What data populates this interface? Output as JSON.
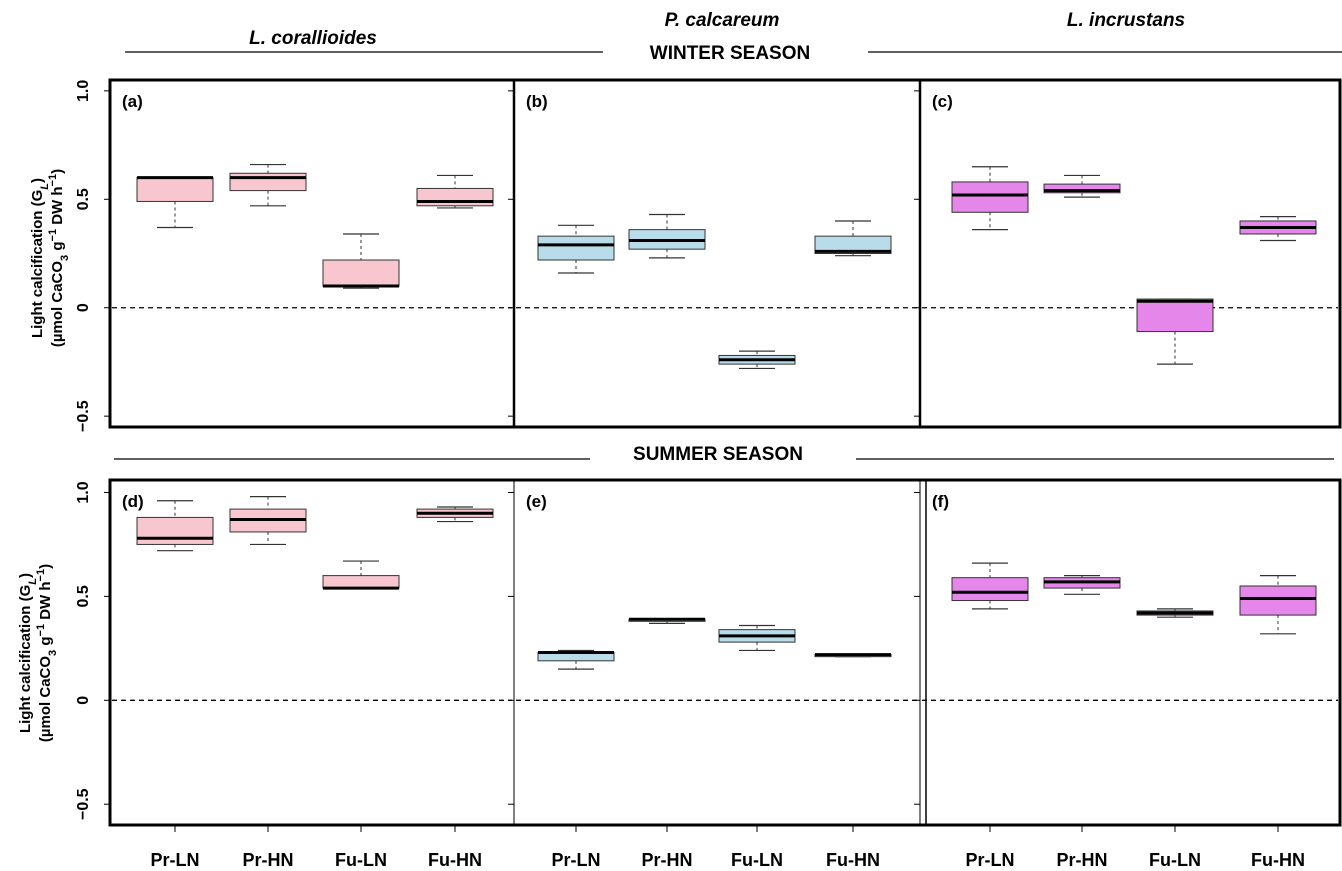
{
  "header": {
    "species": [
      "L. corallioides",
      "P. calcareum",
      "L. incrustans"
    ],
    "winter_title": "WINTER SEASON",
    "summer_title": "SUMMER SEASON"
  },
  "y_axis_label": {
    "line1": "Light calcification (G",
    "line1_sub": "L",
    "line1_end": ")",
    "line2_a": "(µmol CaCO",
    "line2_sub": "3",
    "line2_b": " g",
    "line2_sup1": "−1",
    "line2_c": " DW h",
    "line2_sup2": "−1",
    "line2_d": ")"
  },
  "colors": {
    "L. corallioides": "#f7c6cf",
    "P. calcareum": "#b8dcea",
    "L. incrustans": "#e486ea"
  },
  "chart_data": [
    {
      "type": "boxplot",
      "panel": "(a)",
      "season": "WINTER SEASON",
      "species": "L. corallioides",
      "categories": [
        "Pr-LN",
        "Pr-HN",
        "Fu-LN",
        "Fu-HN"
      ],
      "yticks": [
        -0.5,
        0,
        0.5,
        1.0
      ],
      "ytick_labels": [
        "−0.5",
        "0",
        "0.5",
        "1.0"
      ],
      "ylim": [
        -0.55,
        1.05
      ],
      "reference_line": 0,
      "boxes": [
        {
          "min": 0.37,
          "q1": 0.49,
          "median": 0.6,
          "q3": 0.6,
          "max": 0.6
        },
        {
          "min": 0.47,
          "q1": 0.54,
          "median": 0.6,
          "q3": 0.62,
          "max": 0.66
        },
        {
          "min": 0.09,
          "q1": 0.1,
          "median": 0.1,
          "q3": 0.22,
          "max": 0.34
        },
        {
          "min": 0.46,
          "q1": 0.47,
          "median": 0.49,
          "q3": 0.55,
          "max": 0.61
        }
      ]
    },
    {
      "type": "boxplot",
      "panel": "(b)",
      "season": "WINTER SEASON",
      "species": "P. calcareum",
      "categories": [
        "Pr-LN",
        "Pr-HN",
        "Fu-LN",
        "Fu-HN"
      ],
      "yticks": [
        -0.5,
        0,
        0.5,
        1.0
      ],
      "ytick_labels": [
        "−0.5",
        "0",
        "0.5",
        "1.0"
      ],
      "ylim": [
        -0.55,
        1.05
      ],
      "reference_line": 0,
      "boxes": [
        {
          "min": 0.16,
          "q1": 0.22,
          "median": 0.29,
          "q3": 0.33,
          "max": 0.38
        },
        {
          "min": 0.23,
          "q1": 0.27,
          "median": 0.31,
          "q3": 0.36,
          "max": 0.43
        },
        {
          "min": -0.28,
          "q1": -0.26,
          "median": -0.24,
          "q3": -0.22,
          "max": -0.2
        },
        {
          "min": 0.24,
          "q1": 0.25,
          "median": 0.26,
          "q3": 0.33,
          "max": 0.4
        }
      ]
    },
    {
      "type": "boxplot",
      "panel": "(c)",
      "season": "WINTER SEASON",
      "species": "L. incrustans",
      "categories": [
        "Pr-LN",
        "Pr-HN",
        "Fu-LN",
        "Fu-HN"
      ],
      "yticks": [
        -0.5,
        0,
        0.5,
        1.0
      ],
      "ytick_labels": [
        "−0.5",
        "0",
        "0.5",
        "1.0"
      ],
      "ylim": [
        -0.55,
        1.05
      ],
      "reference_line": 0,
      "boxes": [
        {
          "min": 0.36,
          "q1": 0.44,
          "median": 0.52,
          "q3": 0.58,
          "max": 0.65
        },
        {
          "min": 0.51,
          "q1": 0.53,
          "median": 0.54,
          "q3": 0.57,
          "max": 0.61
        },
        {
          "min": -0.26,
          "q1": -0.11,
          "median": 0.03,
          "q3": 0.04,
          "max": 0.04
        },
        {
          "min": 0.31,
          "q1": 0.34,
          "median": 0.37,
          "q3": 0.4,
          "max": 0.42
        }
      ]
    },
    {
      "type": "boxplot",
      "panel": "(d)",
      "season": "SUMMER SEASON",
      "species": "L. corallioides",
      "categories": [
        "Pr-LN",
        "Pr-HN",
        "Fu-LN",
        "Fu-HN"
      ],
      "yticks": [
        -0.5,
        0,
        0.5,
        1.0
      ],
      "ytick_labels": [
        "−0.5",
        "0",
        "0.5",
        "1.0"
      ],
      "ylim": [
        -0.6,
        1.06
      ],
      "reference_line": 0,
      "boxes": [
        {
          "min": 0.72,
          "q1": 0.75,
          "median": 0.78,
          "q3": 0.88,
          "max": 0.96
        },
        {
          "min": 0.75,
          "q1": 0.81,
          "median": 0.87,
          "q3": 0.92,
          "max": 0.98
        },
        {
          "min": 0.54,
          "q1": 0.54,
          "median": 0.54,
          "q3": 0.6,
          "max": 0.67
        },
        {
          "min": 0.86,
          "q1": 0.88,
          "median": 0.9,
          "q3": 0.92,
          "max": 0.93
        }
      ]
    },
    {
      "type": "boxplot",
      "panel": "(e)",
      "season": "SUMMER SEASON",
      "species": "P. calcareum",
      "categories": [
        "Pr-LN",
        "Pr-HN",
        "Fu-LN",
        "Fu-HN"
      ],
      "yticks": [
        -0.5,
        0,
        0.5,
        1.0
      ],
      "ytick_labels": [
        "−0.5",
        "0",
        "0.5",
        "1.0"
      ],
      "ylim": [
        -0.6,
        1.06
      ],
      "reference_line": 0,
      "boxes": [
        {
          "min": 0.15,
          "q1": 0.19,
          "median": 0.23,
          "q3": 0.23,
          "max": 0.24
        },
        {
          "min": 0.37,
          "q1": 0.38,
          "median": 0.39,
          "q3": 0.39,
          "max": 0.39
        },
        {
          "min": 0.24,
          "q1": 0.28,
          "median": 0.31,
          "q3": 0.34,
          "max": 0.36
        },
        {
          "min": 0.21,
          "q1": 0.21,
          "median": 0.22,
          "q3": 0.22,
          "max": 0.22
        }
      ]
    },
    {
      "type": "boxplot",
      "panel": "(f)",
      "season": "SUMMER SEASON",
      "species": "L. incrustans",
      "categories": [
        "Pr-LN",
        "Pr-HN",
        "Fu-LN",
        "Fu-HN"
      ],
      "yticks": [
        -0.5,
        0,
        0.5,
        1.0
      ],
      "ytick_labels": [
        "−0.5",
        "0",
        "0.5",
        "1.0"
      ],
      "ylim": [
        -0.6,
        1.06
      ],
      "reference_line": 0,
      "boxes": [
        {
          "min": 0.44,
          "q1": 0.48,
          "median": 0.52,
          "q3": 0.59,
          "max": 0.66
        },
        {
          "min": 0.51,
          "q1": 0.54,
          "median": 0.57,
          "q3": 0.59,
          "max": 0.6
        },
        {
          "min": 0.4,
          "q1": 0.41,
          "median": 0.42,
          "q3": 0.43,
          "max": 0.44
        },
        {
          "min": 0.32,
          "q1": 0.41,
          "median": 0.49,
          "q3": 0.55,
          "max": 0.6
        }
      ]
    }
  ]
}
